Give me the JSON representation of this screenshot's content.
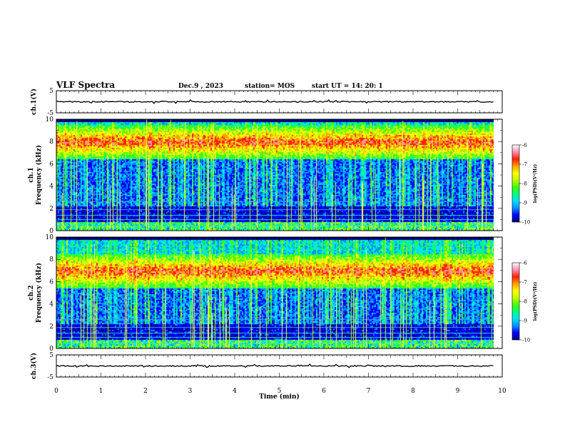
{
  "header": {
    "title": "VLF Spectra",
    "date": "Dec.9 , 2023",
    "station": "station= MOS",
    "start": "start UT = 14: 20: 1"
  },
  "colors": {
    "colormap": [
      "#00007a",
      "#0000ff",
      "#0090ff",
      "#00e0ff",
      "#00ff80",
      "#40ff00",
      "#c0ff00",
      "#ffff00",
      "#ffa000",
      "#ff2000",
      "#ff90b0",
      "#ffffff"
    ]
  },
  "chart_data": [
    {
      "type": "line",
      "id": "ch1-waveform",
      "ylabel": "ch.1(V)",
      "ylim": [
        -5,
        5
      ],
      "yticks": [
        "5",
        "-5"
      ],
      "x": [
        0,
        9.8
      ],
      "values": [
        0,
        0
      ]
    },
    {
      "type": "heatmap",
      "id": "ch1-spectrogram",
      "ylabel_top": "ch.1",
      "ylabel": "Frequency (kHz)",
      "ylim": [
        0,
        10
      ],
      "yticks": [
        "0",
        "2",
        "4",
        "6",
        "8",
        "10"
      ],
      "x_range_min": [
        0,
        9.8
      ],
      "emission_band_khz": [
        6.5,
        9.5
      ],
      "colorbar": {
        "label": "log(PSD)(V²/Hz)",
        "range": [
          -10,
          -6
        ],
        "ticks": [
          "-6",
          "-7",
          "-8",
          "-9",
          "-10"
        ]
      }
    },
    {
      "type": "heatmap",
      "id": "ch2-spectrogram",
      "ylabel_top": "ch.2",
      "ylabel": "Frequency (kHz)",
      "ylim": [
        0,
        10
      ],
      "yticks": [
        "0",
        "2",
        "4",
        "6",
        "8",
        "10"
      ],
      "x_range_min": [
        0,
        9.8
      ],
      "emission_band_khz": [
        5.5,
        8.5
      ],
      "colorbar": {
        "label": "log(PSD)(V²/Hz)",
        "range": [
          -10,
          -6
        ],
        "ticks": [
          "-6",
          "-7",
          "-8",
          "-9",
          "-10"
        ]
      }
    },
    {
      "type": "line",
      "id": "ch3-waveform",
      "ylabel": "ch.3(V)",
      "ylim": [
        -5,
        5
      ],
      "yticks": [
        "5",
        "-5"
      ],
      "x": [
        0,
        9.8
      ],
      "values": [
        0,
        0
      ]
    }
  ],
  "xaxis": {
    "label": "Time (min)",
    "range": [
      0,
      10
    ],
    "ticks": [
      "0",
      "1",
      "2",
      "3",
      "4",
      "5",
      "6",
      "7",
      "8",
      "9",
      "10"
    ]
  }
}
